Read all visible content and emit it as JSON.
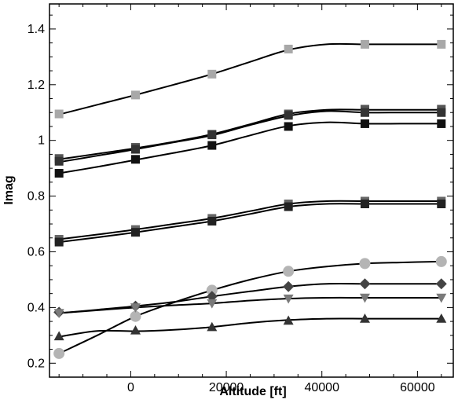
{
  "chart_data": {
    "type": "line",
    "title": "",
    "xlabel": "Altitude [ft]",
    "ylabel": "Imag",
    "xlim": [
      -17000,
      67500
    ],
    "ylim": [
      0.15,
      1.49
    ],
    "xticks": [
      0,
      20000,
      40000,
      60000
    ],
    "xtick_labels": [
      "0",
      "20000",
      "40000",
      "60000"
    ],
    "yticks": [
      0.2,
      0.4,
      0.6,
      0.8,
      1.0,
      1.2,
      1.4
    ],
    "ytick_labels": [
      "0.2",
      "0.4",
      "0.6",
      "0.8",
      "1",
      "1.2",
      "1.4"
    ],
    "grid": false,
    "legend": "none",
    "series": [
      {
        "marker": "square",
        "color": "#a8a8a8",
        "x": [
          -15000,
          1000,
          17000,
          33000,
          49000,
          65000
        ],
        "y": [
          1.095,
          1.163,
          1.238,
          1.328,
          1.345,
          1.345
        ],
        "line_x": [
          -15000,
          -7000,
          1000,
          9000,
          17000,
          25000,
          33000,
          41000,
          49000,
          57000,
          65000
        ],
        "line_y": [
          1.093,
          1.128,
          1.163,
          1.2,
          1.238,
          1.282,
          1.325,
          1.345,
          1.345,
          1.345,
          1.345
        ]
      },
      {
        "marker": "square",
        "color": "#555555",
        "x": [
          -15000,
          1000,
          17000,
          33000,
          49000,
          65000
        ],
        "y": [
          0.935,
          0.975,
          1.022,
          1.095,
          1.112,
          1.112
        ],
        "line_x": [
          -15000,
          -7000,
          1000,
          9000,
          17000,
          25000,
          33000,
          41000,
          49000,
          57000,
          65000
        ],
        "line_y": [
          0.932,
          0.952,
          0.972,
          0.995,
          1.022,
          1.058,
          1.095,
          1.11,
          1.11,
          1.11,
          1.11
        ]
      },
      {
        "marker": "square",
        "color": "#333333",
        "x": [
          -15000,
          1000,
          17000,
          33000,
          49000,
          65000
        ],
        "y": [
          0.925,
          0.968,
          1.02,
          1.09,
          1.1,
          1.1
        ],
        "line_x": [
          -15000,
          -7000,
          1000,
          9000,
          17000,
          25000,
          33000,
          41000,
          49000,
          57000,
          65000
        ],
        "line_y": [
          0.922,
          0.945,
          0.968,
          0.993,
          1.018,
          1.055,
          1.088,
          1.105,
          1.1,
          1.1,
          1.1
        ]
      },
      {
        "marker": "square",
        "color": "#111111",
        "x": [
          -15000,
          1000,
          17000,
          33000,
          49000,
          65000
        ],
        "y": [
          0.882,
          0.932,
          0.982,
          1.05,
          1.06,
          1.06
        ],
        "line_x": [
          -15000,
          -7000,
          1000,
          9000,
          17000,
          25000,
          33000,
          41000,
          49000,
          57000,
          65000
        ],
        "line_y": [
          0.882,
          0.905,
          0.93,
          0.955,
          0.982,
          1.018,
          1.052,
          1.065,
          1.06,
          1.06,
          1.06
        ]
      },
      {
        "marker": "square",
        "color": "#666666",
        "x": [
          -15000,
          1000,
          17000,
          33000,
          49000,
          65000
        ],
        "y": [
          0.645,
          0.68,
          0.72,
          0.772,
          0.782,
          0.782
        ],
        "line_x": [
          -15000,
          -7000,
          1000,
          9000,
          17000,
          25000,
          33000,
          41000,
          49000,
          57000,
          65000
        ],
        "line_y": [
          0.645,
          0.662,
          0.68,
          0.7,
          0.72,
          0.746,
          0.772,
          0.782,
          0.782,
          0.782,
          0.782
        ]
      },
      {
        "marker": "square",
        "color": "#222222",
        "x": [
          -15000,
          1000,
          17000,
          33000,
          49000,
          65000
        ],
        "y": [
          0.635,
          0.67,
          0.71,
          0.762,
          0.772,
          0.772
        ],
        "line_x": [
          -15000,
          -7000,
          1000,
          9000,
          17000,
          25000,
          33000,
          41000,
          49000,
          57000,
          65000
        ],
        "line_y": [
          0.635,
          0.652,
          0.67,
          0.69,
          0.71,
          0.736,
          0.762,
          0.772,
          0.772,
          0.772,
          0.772
        ]
      },
      {
        "marker": "circle",
        "color": "#b4b4b4",
        "x": [
          -15000,
          1000,
          17000,
          33000,
          49000,
          65000
        ],
        "y": [
          0.235,
          0.368,
          0.462,
          0.53,
          0.558,
          0.565
        ],
        "line_x": [
          -15000,
          -7000,
          1000,
          9000,
          17000,
          25000,
          33000,
          41000,
          49000,
          57000,
          65000
        ],
        "line_y": [
          0.235,
          0.3,
          0.368,
          0.418,
          0.462,
          0.5,
          0.53,
          0.547,
          0.558,
          0.562,
          0.565
        ]
      },
      {
        "marker": "diamond",
        "color": "#444444",
        "x": [
          -15000,
          1000,
          17000,
          33000,
          49000,
          65000
        ],
        "y": [
          0.383,
          0.405,
          0.44,
          0.475,
          0.485,
          0.485
        ],
        "line_x": [
          -15000,
          -7000,
          1000,
          9000,
          17000,
          25000,
          33000,
          41000,
          49000,
          57000,
          65000
        ],
        "line_y": [
          0.38,
          0.392,
          0.405,
          0.42,
          0.44,
          0.458,
          0.475,
          0.485,
          0.485,
          0.485,
          0.485
        ]
      },
      {
        "marker": "triangle-down",
        "color": "#7a7a7a",
        "x": [
          -15000,
          1000,
          17000,
          33000,
          49000,
          65000
        ],
        "y": [
          0.38,
          0.4,
          0.415,
          0.432,
          0.435,
          0.435
        ],
        "line_x": [
          -15000,
          -7000,
          1000,
          9000,
          17000,
          25000,
          33000,
          41000,
          49000,
          57000,
          65000
        ],
        "line_y": [
          0.38,
          0.39,
          0.4,
          0.408,
          0.415,
          0.425,
          0.432,
          0.435,
          0.435,
          0.435,
          0.435
        ]
      },
      {
        "marker": "triangle-up",
        "color": "#333333",
        "x": [
          -15000,
          1000,
          17000,
          33000,
          49000,
          65000
        ],
        "y": [
          0.297,
          0.318,
          0.33,
          0.353,
          0.36,
          0.36
        ],
        "line_x": [
          -15000,
          -7000,
          1000,
          9000,
          17000,
          25000,
          33000,
          41000,
          49000,
          57000,
          65000
        ],
        "line_y": [
          0.295,
          0.316,
          0.315,
          0.32,
          0.33,
          0.345,
          0.355,
          0.36,
          0.36,
          0.36,
          0.36
        ]
      }
    ]
  }
}
